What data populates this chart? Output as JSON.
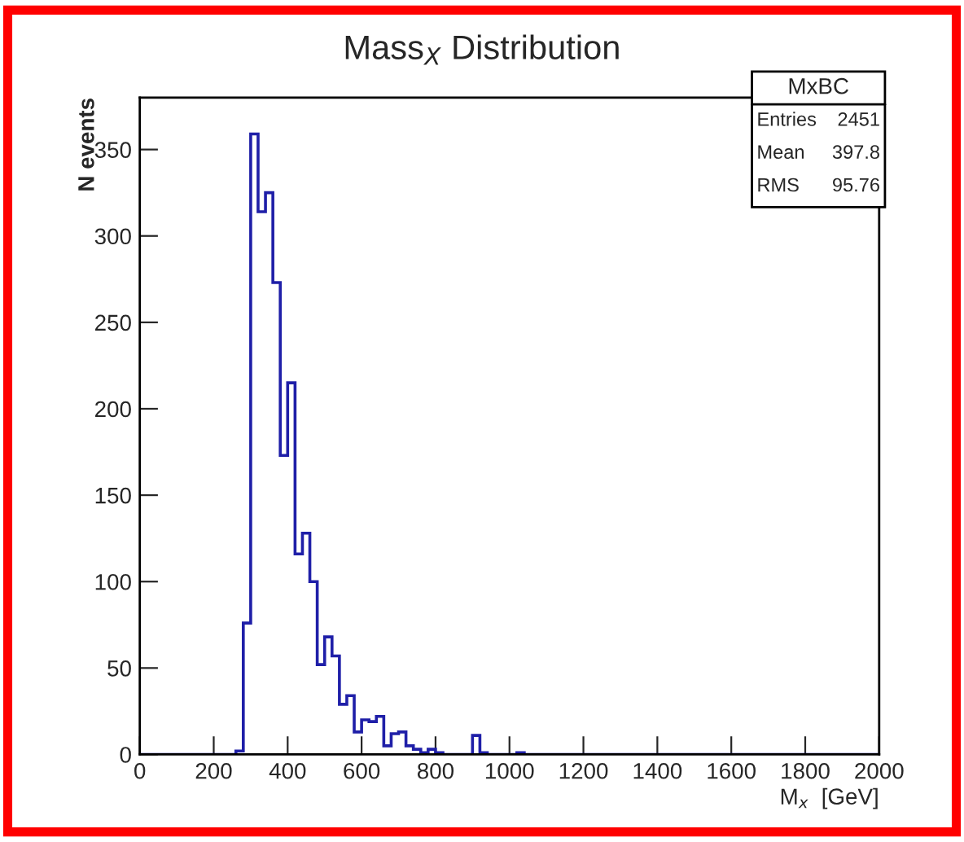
{
  "chart_data": {
    "type": "histogram",
    "title": "Mass$_{X}$ Distribution",
    "xlabel": "M$_{x}$  [GeV]",
    "ylabel": "N events",
    "bins": [
      0,
      20,
      40,
      60,
      80,
      100,
      120,
      140,
      160,
      180,
      200,
      220,
      240,
      260,
      280,
      300,
      320,
      340,
      360,
      380,
      400,
      420,
      440,
      460,
      480,
      500,
      520,
      540,
      560,
      580,
      600,
      620,
      640,
      660,
      680,
      700,
      720,
      740,
      760,
      780,
      800,
      820,
      840,
      860,
      880,
      900,
      920,
      940,
      960,
      980,
      1000,
      1020,
      1040,
      1060,
      1080,
      1100,
      1120,
      1140,
      1160,
      1180,
      1200,
      1220,
      1240,
      1260,
      1280,
      1300,
      1320,
      1340,
      1360,
      1380,
      1400,
      1420,
      1440,
      1460,
      1480,
      1500,
      1520,
      1540,
      1560,
      1580,
      1600,
      1620,
      1640,
      1660,
      1680,
      1700,
      1720,
      1740,
      1760,
      1780,
      1800,
      1820,
      1840,
      1860,
      1880,
      1900,
      1920,
      1940,
      1960,
      1980,
      2000
    ],
    "values": [
      0,
      0,
      0,
      0,
      0,
      0,
      0,
      0,
      0,
      0,
      0,
      0,
      0,
      2,
      76,
      359,
      314,
      325,
      273,
      173,
      215,
      116,
      128,
      100,
      52,
      68,
      57,
      29,
      34,
      13,
      20,
      19,
      22,
      5,
      12,
      13,
      5,
      3,
      1,
      3,
      1,
      0,
      0,
      0,
      0,
      11,
      1,
      0,
      0,
      0,
      0,
      1,
      0,
      0,
      0,
      0,
      0,
      0,
      0,
      0,
      0,
      0,
      0,
      0,
      0,
      0,
      0,
      0,
      0,
      0,
      0,
      0,
      0,
      0,
      0,
      0,
      0,
      0,
      0,
      0,
      0,
      0,
      0,
      0,
      0,
      0,
      0,
      0,
      0,
      0,
      0,
      0,
      0,
      0,
      0,
      0,
      0,
      0,
      0,
      0
    ],
    "color": "#1f1fa8",
    "xlim": [
      0,
      2000
    ],
    "ylim": [
      0,
      380
    ],
    "xticks": [
      0,
      200,
      400,
      600,
      800,
      1000,
      1200,
      1400,
      1600,
      1800,
      2000
    ],
    "yticks": [
      0,
      50,
      100,
      150,
      200,
      250,
      300,
      350
    ],
    "grid": false,
    "annotations": [
      "MxBC",
      "Entries",
      "2451",
      "Mean",
      "397.8",
      "RMS",
      "95.76"
    ]
  }
}
